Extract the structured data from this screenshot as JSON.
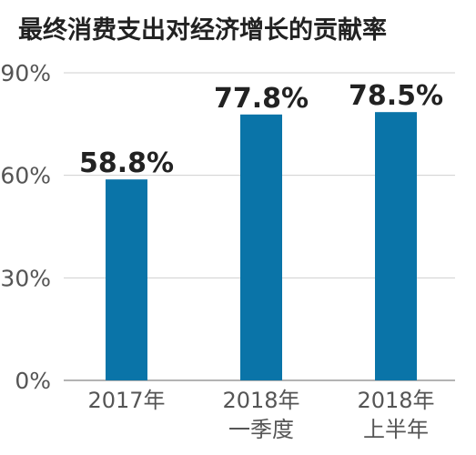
{
  "chart_data": {
    "type": "bar",
    "title": "最终消费支出对经济增长的贡献率",
    "categories": [
      [
        "2017年"
      ],
      [
        "2018年",
        "一季度"
      ],
      [
        "2018年",
        "上半年"
      ]
    ],
    "values": [
      58.8,
      77.8,
      78.5
    ],
    "value_labels": [
      "58.8%",
      "77.8%",
      "78.5%"
    ],
    "ylim": [
      0,
      90
    ],
    "yticks": [
      0,
      30,
      60,
      90
    ],
    "ytick_labels": [
      "0%",
      "30%",
      "60%",
      "90%"
    ],
    "xlabel": "",
    "ylabel": "",
    "grid": true,
    "bar_color": "#0a74a8"
  }
}
